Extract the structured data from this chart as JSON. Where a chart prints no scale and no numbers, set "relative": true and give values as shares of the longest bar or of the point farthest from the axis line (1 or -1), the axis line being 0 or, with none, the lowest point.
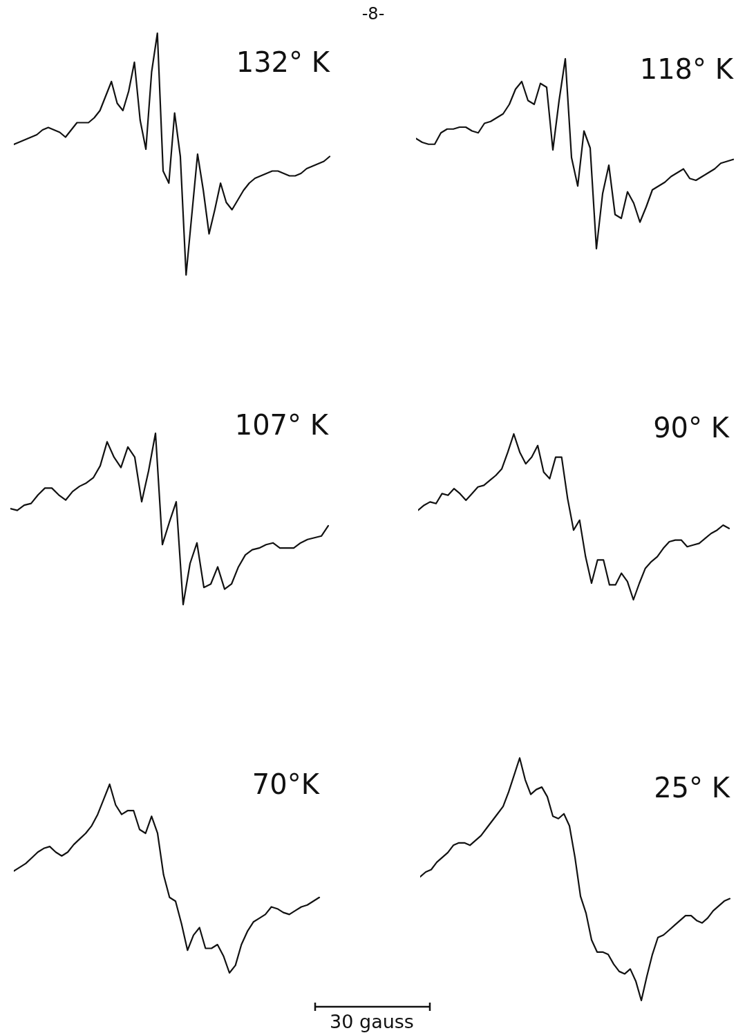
{
  "chart_data": [
    {
      "type": "line",
      "title": "132° K",
      "relative": true,
      "color": "#111111",
      "annotations": [
        "-8-"
      ],
      "categories": [
        null,
        null,
        null,
        null,
        null,
        null,
        null,
        null,
        null,
        null,
        null,
        null,
        null,
        null,
        null,
        null,
        null,
        null,
        null,
        null,
        null,
        null,
        null,
        null,
        null,
        null,
        null,
        null,
        null,
        null,
        null,
        null,
        null,
        null,
        null,
        null,
        null,
        null,
        null,
        null,
        null,
        null,
        null,
        null,
        null,
        null,
        null,
        null,
        null,
        null,
        null,
        null,
        null,
        null,
        null,
        null
      ],
      "values": [
        0.54,
        0.55,
        0.56,
        0.57,
        0.58,
        0.6,
        0.61,
        0.6,
        0.59,
        0.57,
        0.6,
        0.63,
        0.63,
        0.63,
        0.65,
        0.68,
        0.74,
        0.8,
        0.71,
        0.68,
        0.76,
        0.88,
        0.64,
        0.52,
        0.84,
        1,
        0.43,
        0.38,
        0.67,
        0.49,
        0,
        0.25,
        0.5,
        0.35,
        0.17,
        0.27,
        0.38,
        0.3,
        0.27,
        0.31,
        0.35,
        0.38,
        0.4,
        0.41,
        0.42,
        0.43,
        0.43,
        0.42,
        0.41,
        0.41,
        0.42,
        0.44,
        0.45,
        0.46,
        0.47,
        0.49
      ]
    },
    {
      "type": "line",
      "title": "118° K",
      "relative": true,
      "color": "#111111",
      "categories": [
        null,
        null,
        null,
        null,
        null,
        null,
        null,
        null,
        null,
        null,
        null,
        null,
        null,
        null,
        null,
        null,
        null,
        null,
        null,
        null,
        null,
        null,
        null,
        null,
        null,
        null,
        null,
        null,
        null,
        null,
        null,
        null,
        null,
        null,
        null,
        null,
        null,
        null,
        null,
        null,
        null,
        null,
        null,
        null,
        null,
        null,
        null,
        null,
        null,
        null,
        null,
        null
      ],
      "values": [
        0.58,
        0.56,
        0.55,
        0.55,
        0.61,
        0.63,
        0.63,
        0.64,
        0.64,
        0.62,
        0.61,
        0.66,
        0.67,
        0.69,
        0.71,
        0.76,
        0.84,
        0.88,
        0.78,
        0.76,
        0.87,
        0.85,
        0.52,
        0.78,
        1,
        0.48,
        0.33,
        0.62,
        0.53,
        0,
        0.29,
        0.44,
        0.18,
        0.16,
        0.3,
        0.24,
        0.14,
        0.22,
        0.31,
        0.33,
        0.35,
        0.38,
        0.4,
        0.42,
        0.37,
        0.36,
        0.38,
        0.4,
        0.42,
        0.45,
        0.46,
        0.47
      ]
    },
    {
      "type": "line",
      "title": "107° K",
      "relative": true,
      "color": "#111111",
      "categories": [
        null,
        null,
        null,
        null,
        null,
        null,
        null,
        null,
        null,
        null,
        null,
        null,
        null,
        null,
        null,
        null,
        null,
        null,
        null,
        null,
        null,
        null,
        null,
        null,
        null,
        null,
        null,
        null,
        null,
        null,
        null,
        null,
        null,
        null,
        null,
        null,
        null,
        null,
        null,
        null,
        null,
        null,
        null,
        null,
        null,
        null,
        null
      ],
      "values": [
        0.56,
        0.55,
        0.58,
        0.59,
        0.64,
        0.68,
        0.68,
        0.64,
        0.61,
        0.66,
        0.69,
        0.71,
        0.74,
        0.81,
        0.95,
        0.86,
        0.8,
        0.92,
        0.86,
        0.6,
        0.78,
        1,
        0.35,
        0.48,
        0.6,
        0,
        0.24,
        0.36,
        0.1,
        0.12,
        0.22,
        0.09,
        0.12,
        0.22,
        0.29,
        0.32,
        0.33,
        0.35,
        0.36,
        0.33,
        0.33,
        0.33,
        0.36,
        0.38,
        0.39,
        0.4,
        0.46
      ]
    },
    {
      "type": "line",
      "title": "90° K",
      "relative": true,
      "color": "#111111",
      "categories": [
        null,
        null,
        null,
        null,
        null,
        null,
        null,
        null,
        null,
        null,
        null,
        null,
        null,
        null,
        null,
        null,
        null,
        null,
        null,
        null,
        null,
        null,
        null,
        null,
        null,
        null,
        null,
        null,
        null,
        null,
        null,
        null,
        null,
        null,
        null,
        null,
        null,
        null,
        null,
        null,
        null,
        null,
        null,
        null,
        null,
        null,
        null,
        null,
        null,
        null,
        null,
        null,
        null
      ],
      "values": [
        0.54,
        0.57,
        0.59,
        0.58,
        0.64,
        0.63,
        0.67,
        0.64,
        0.6,
        0.64,
        0.68,
        0.69,
        0.72,
        0.75,
        0.79,
        0.89,
        1,
        0.89,
        0.82,
        0.86,
        0.93,
        0.77,
        0.73,
        0.86,
        0.86,
        0.61,
        0.42,
        0.48,
        0.26,
        0.1,
        0.24,
        0.24,
        0.09,
        0.09,
        0.16,
        0.11,
        0,
        0.1,
        0.19,
        0.23,
        0.26,
        0.31,
        0.35,
        0.36,
        0.36,
        0.32,
        0.33,
        0.34,
        0.37,
        0.4,
        0.42,
        0.45,
        0.43
      ]
    },
    {
      "type": "line",
      "title": "70°K",
      "relative": true,
      "color": "#111111",
      "annotations": [
        "30 gauss"
      ],
      "categories": [
        null,
        null,
        null,
        null,
        null,
        null,
        null,
        null,
        null,
        null,
        null,
        null,
        null,
        null,
        null,
        null,
        null,
        null,
        null,
        null,
        null,
        null,
        null,
        null,
        null,
        null,
        null,
        null,
        null,
        null,
        null,
        null,
        null,
        null,
        null,
        null,
        null,
        null,
        null,
        null,
        null,
        null,
        null,
        null,
        null,
        null,
        null,
        null,
        null,
        null,
        null,
        null
      ],
      "values": [
        0.54,
        0.56,
        0.58,
        0.61,
        0.64,
        0.66,
        0.67,
        0.64,
        0.62,
        0.64,
        0.68,
        0.71,
        0.74,
        0.78,
        0.84,
        0.92,
        1,
        0.89,
        0.84,
        0.86,
        0.86,
        0.76,
        0.74,
        0.83,
        0.74,
        0.52,
        0.4,
        0.38,
        0.26,
        0.12,
        0.2,
        0.24,
        0.13,
        0.13,
        0.15,
        0.09,
        0,
        0.04,
        0.15,
        0.22,
        0.27,
        0.29,
        0.31,
        0.35,
        0.34,
        0.32,
        0.31,
        0.33,
        0.35,
        0.36,
        0.38,
        0.4
      ]
    },
    {
      "type": "line",
      "title": "25° K",
      "relative": true,
      "color": "#111111",
      "categories": [
        null,
        null,
        null,
        null,
        null,
        null,
        null,
        null,
        null,
        null,
        null,
        null,
        null,
        null,
        null,
        null,
        null,
        null,
        null,
        null,
        null,
        null,
        null,
        null,
        null,
        null,
        null,
        null,
        null,
        null,
        null,
        null,
        null,
        null,
        null,
        null,
        null,
        null,
        null,
        null,
        null,
        null,
        null,
        null,
        null,
        null,
        null,
        null,
        null,
        null,
        null,
        null,
        null,
        null,
        null,
        null,
        null
      ],
      "values": [
        0.51,
        0.53,
        0.54,
        0.57,
        0.59,
        0.61,
        0.64,
        0.65,
        0.65,
        0.64,
        0.66,
        0.68,
        0.71,
        0.74,
        0.77,
        0.8,
        0.86,
        0.93,
        1,
        0.91,
        0.85,
        0.87,
        0.88,
        0.84,
        0.76,
        0.75,
        0.77,
        0.72,
        0.59,
        0.43,
        0.36,
        0.25,
        0.2,
        0.2,
        0.19,
        0.15,
        0.12,
        0.11,
        0.13,
        0.08,
        0,
        0.1,
        0.19,
        0.26,
        0.27,
        0.29,
        0.31,
        0.33,
        0.35,
        0.35,
        0.33,
        0.32,
        0.34,
        0.37,
        0.39,
        0.41,
        0.42
      ]
    }
  ]
}
